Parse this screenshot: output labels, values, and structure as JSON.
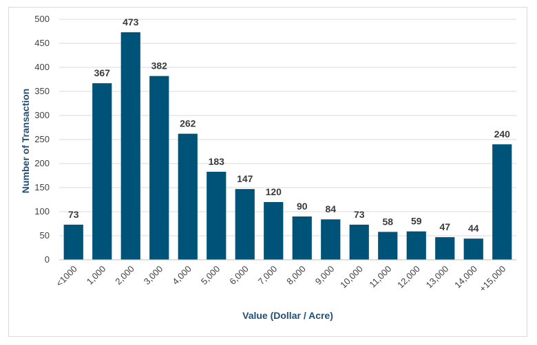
{
  "chart_data": {
    "type": "bar",
    "title": "",
    "xlabel": "Value (Dollar / Acre)",
    "ylabel": "Number of Transaction",
    "ylim": [
      0,
      500
    ],
    "yticks": [
      0,
      50,
      100,
      150,
      200,
      250,
      300,
      350,
      400,
      450,
      500
    ],
    "grid": true,
    "bar_color": "#005378",
    "categories": [
      "<1000",
      "1,000",
      "2,000",
      "3,000",
      "4,000",
      "5,000",
      "6,000",
      "7,000",
      "8,000",
      "9,000",
      "10,000",
      "11,000",
      "12,000",
      "13,000",
      "14,000",
      "+15,000"
    ],
    "values": [
      73,
      367,
      473,
      382,
      262,
      183,
      147,
      120,
      90,
      84,
      73,
      58,
      59,
      47,
      44,
      240
    ]
  }
}
